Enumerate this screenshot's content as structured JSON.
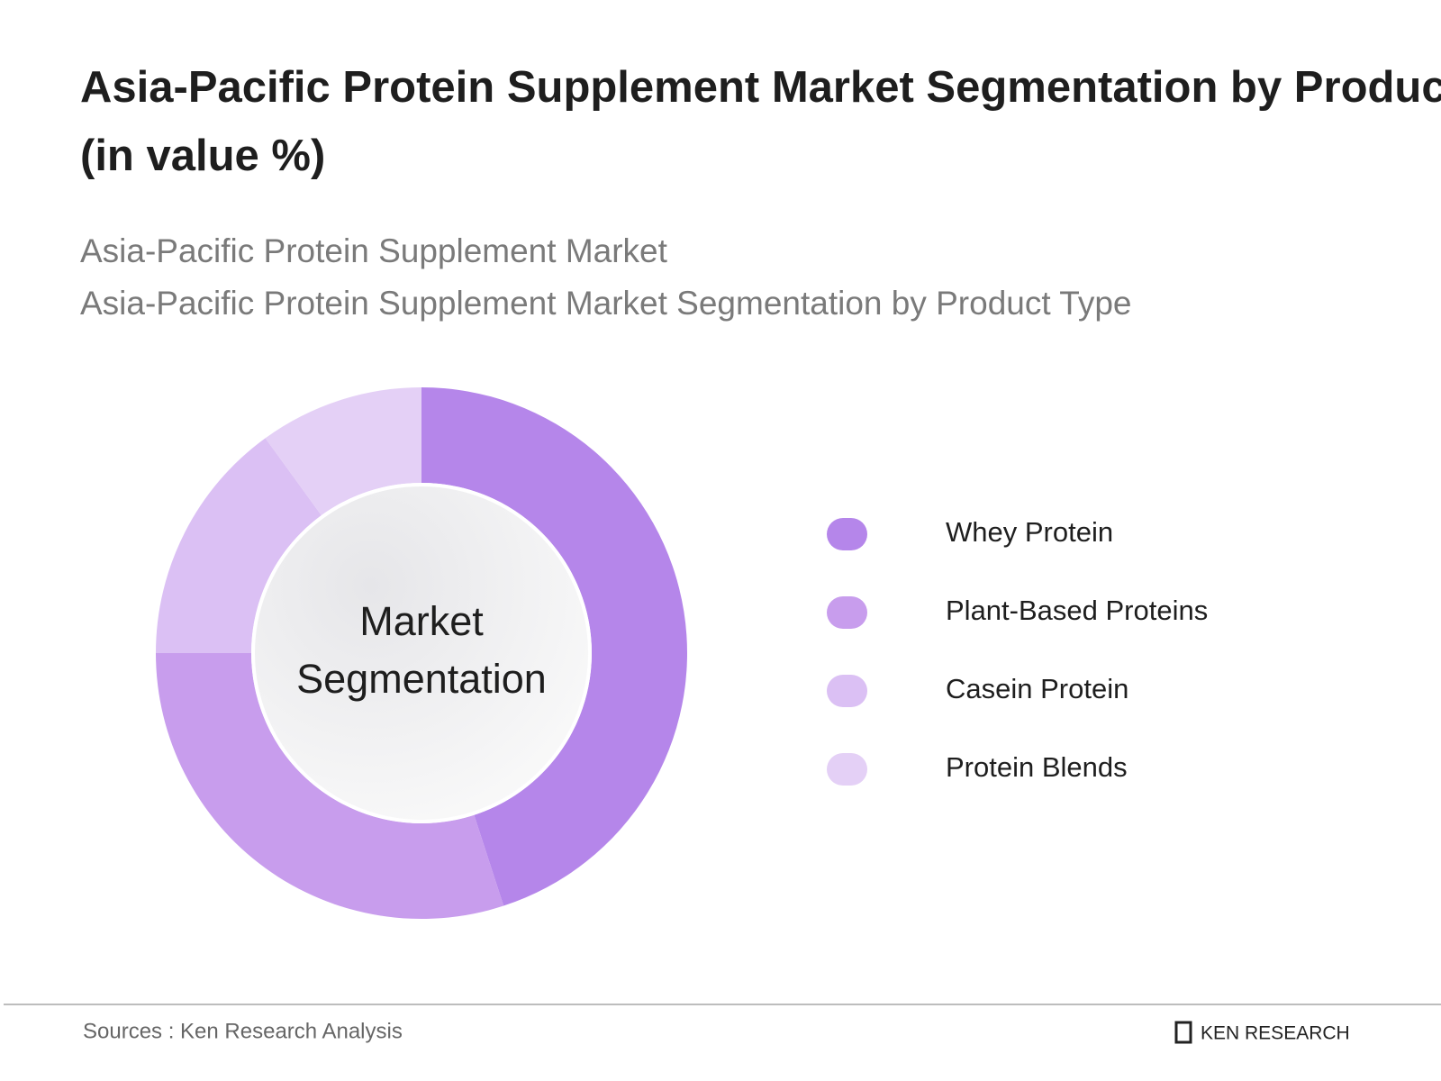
{
  "chart_data": {
    "type": "donut",
    "title": "Asia-Pacific Protein Supplement Market Segmentation by Product Type (in value %)",
    "subtitles": [
      "Asia-Pacific Protein Supplement Market",
      "Asia-Pacific Protein Supplement Market Segmentation by Product Type"
    ],
    "center_label": [
      "Market",
      "Segmentation"
    ],
    "categories": [
      "Whey Protein",
      "Plant-Based Proteins",
      "Casein Protein",
      "Protein Blends"
    ],
    "values": [
      45,
      30,
      15,
      10
    ],
    "colors": [
      "#b586ea",
      "#c89ded",
      "#dbc0f4",
      "#e4d0f6"
    ],
    "legend": "right"
  },
  "footer": {
    "source": "Sources : Ken Research Analysis",
    "logo": "KEN RESEARCH"
  }
}
